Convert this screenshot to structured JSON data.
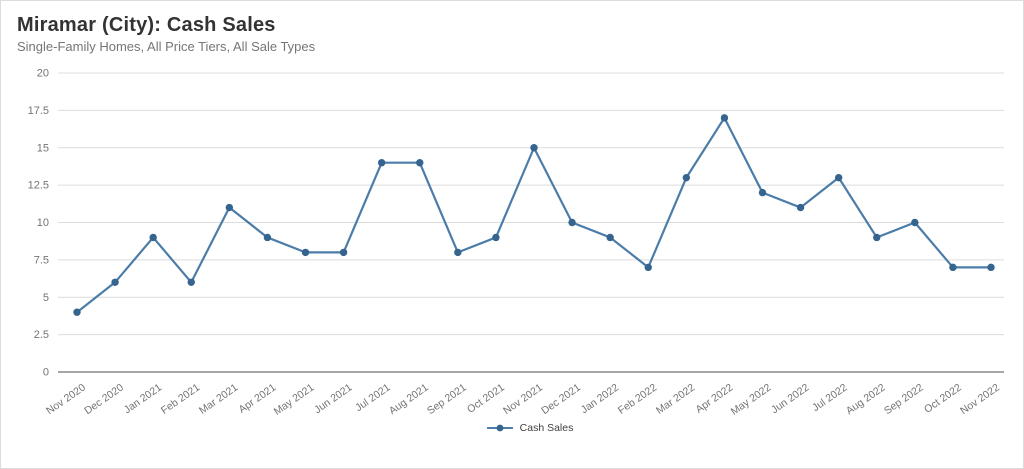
{
  "header": {
    "title": "Miramar (City): Cash Sales",
    "subtitle": "Single-Family Homes, All Price Tiers, All Sale Types"
  },
  "legend": {
    "items": [
      {
        "label": "Cash Sales"
      }
    ]
  },
  "theme": {
    "line": "#4b7da8",
    "marker": "#35658e",
    "grid": "#dcdcdc",
    "axis": "#8a8a8a",
    "tick_label": "#747474",
    "title_color": "#333333",
    "subtitle_color": "#75757a",
    "background": "#ffffff"
  },
  "chart_data": {
    "type": "line",
    "title": "Miramar (City): Cash Sales",
    "subtitle": "Single-Family Homes, All Price Tiers, All Sale Types",
    "categories": [
      "Nov 2020",
      "Dec 2020",
      "Jan 2021",
      "Feb 2021",
      "Mar 2021",
      "Apr 2021",
      "May 2021",
      "Jun 2021",
      "Jul 2021",
      "Aug 2021",
      "Sep 2021",
      "Oct 2021",
      "Nov 2021",
      "Dec 2021",
      "Jan 2022",
      "Feb 2022",
      "Mar 2022",
      "Apr 2022",
      "May 2022",
      "Jun 2022",
      "Jul 2022",
      "Aug 2022",
      "Sep 2022",
      "Oct 2022",
      "Nov 2022"
    ],
    "series": [
      {
        "name": "Cash Sales",
        "values": [
          4,
          6,
          9,
          6,
          11,
          9,
          8,
          8,
          14,
          14,
          8,
          9,
          15,
          10,
          9,
          7,
          13,
          17,
          12,
          11,
          13,
          9,
          10,
          7,
          7
        ]
      }
    ],
    "ylim": [
      0,
      20
    ],
    "yticks": [
      0,
      2.5,
      5,
      7.5,
      10,
      12.5,
      15,
      17.5,
      20
    ],
    "grid": "horizontal",
    "legend_position": "bottom",
    "xlabel": "",
    "ylabel": ""
  }
}
